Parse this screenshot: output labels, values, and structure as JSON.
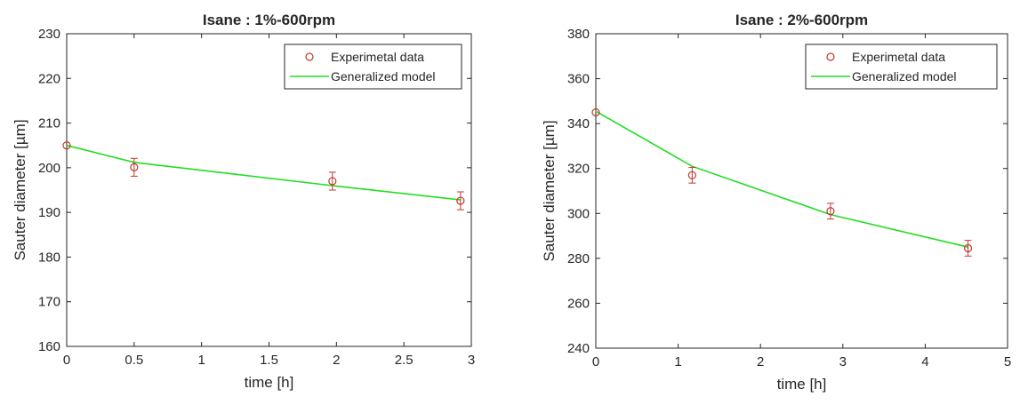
{
  "chart_data": [
    {
      "type": "scatter",
      "title": "Isane : 1%-600rpm",
      "xlabel": "time [h]",
      "ylabel": "Sauter diameter [µm]",
      "xlim": [
        0,
        3
      ],
      "ylim": [
        160,
        230
      ],
      "xticks": [
        "0",
        "0.5",
        "1",
        "1.5",
        "2",
        "2.5",
        "3"
      ],
      "yticks": [
        "160",
        "170",
        "180",
        "190",
        "200",
        "210",
        "220",
        "230"
      ],
      "grid": false,
      "legend_position": "top-right",
      "series": [
        {
          "name": "Experimetal data",
          "kind": "errorbar-markers",
          "color": "#c0392b",
          "points": [
            {
              "x": 0,
              "y": 205,
              "err": 0
            },
            {
              "x": 0.5,
              "y": 200.1,
              "err": 2
            },
            {
              "x": 1.97,
              "y": 197,
              "err": 2
            },
            {
              "x": 2.92,
              "y": 192.6,
              "err": 2
            }
          ]
        },
        {
          "name": "Generalized model",
          "kind": "line",
          "color": "#22dd22",
          "points": [
            {
              "x": 0,
              "y": 205
            },
            {
              "x": 0.5,
              "y": 201.2
            },
            {
              "x": 1.97,
              "y": 196
            },
            {
              "x": 2.92,
              "y": 192.8
            }
          ]
        }
      ]
    },
    {
      "type": "scatter",
      "title": "Isane : 2%-600rpm",
      "xlabel": "time [h]",
      "ylabel": "Sauter diameter [µm]",
      "xlim": [
        0,
        5
      ],
      "ylim": [
        240,
        380
      ],
      "xticks": [
        "0",
        "1",
        "2",
        "3",
        "4",
        "5"
      ],
      "yticks": [
        "240",
        "260",
        "280",
        "300",
        "320",
        "340",
        "360",
        "380"
      ],
      "grid": false,
      "legend_position": "top-right",
      "series": [
        {
          "name": "Experimetal data",
          "kind": "errorbar-markers",
          "color": "#c0392b",
          "points": [
            {
              "x": 0,
              "y": 345,
              "err": 0
            },
            {
              "x": 1.17,
              "y": 317,
              "err": 3.5
            },
            {
              "x": 2.85,
              "y": 301,
              "err": 3.5
            },
            {
              "x": 4.52,
              "y": 284.5,
              "err": 3.5
            }
          ]
        },
        {
          "name": "Generalized model",
          "kind": "line",
          "color": "#22dd22",
          "points": [
            {
              "x": 0,
              "y": 345.5
            },
            {
              "x": 1.17,
              "y": 321
            },
            {
              "x": 2.85,
              "y": 299.5
            },
            {
              "x": 4.52,
              "y": 285
            }
          ]
        }
      ]
    }
  ]
}
